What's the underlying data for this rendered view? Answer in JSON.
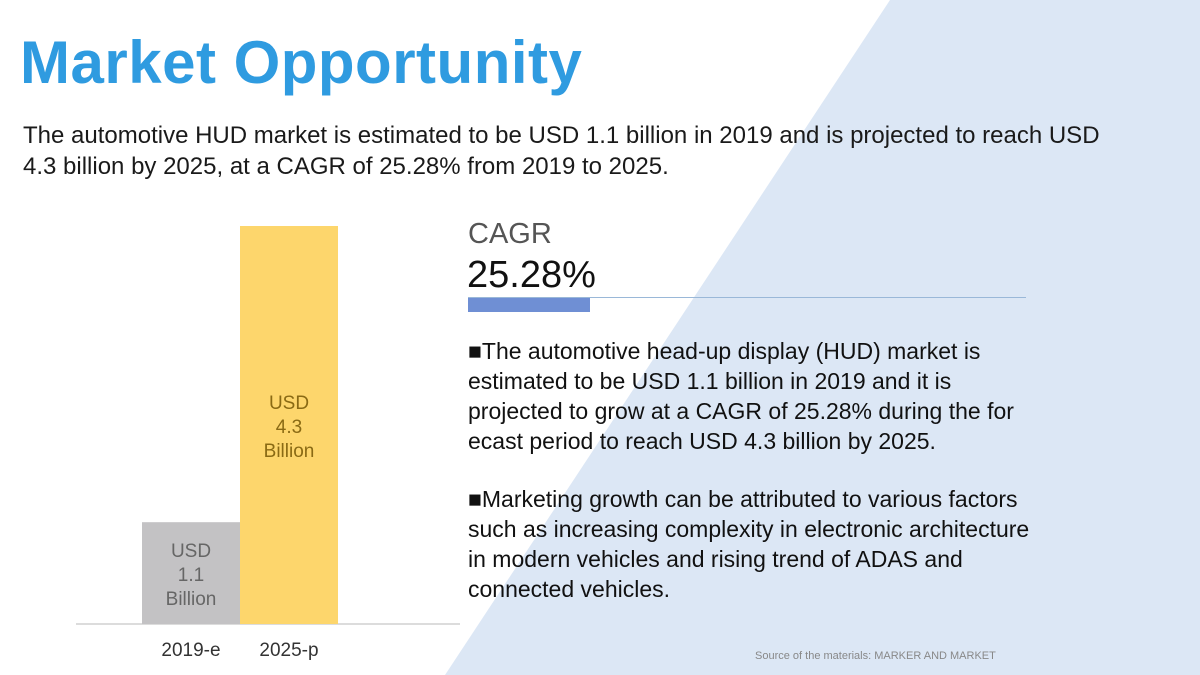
{
  "title": "Market Opportunity",
  "intro": "The automotive HUD market is estimated to be USD 1.1 billion in 2019 and is projected to reach USD 4.3 billion by 2025, at a CAGR of 25.28% from 2019 to 2025.",
  "cagr": {
    "label": "CAGR",
    "value": "25.28%"
  },
  "paragraphs": [
    "■The automotive head-up display (HUD) market is estimated to be USD 1.1 billion in 2019 and it is projected to grow at a CAGR of 25.28% during the for ecast period to reach USD 4.3 billion by 2025.",
    "■Marketing growth can be attributed to various factors such as increasing complexity in electronic architecture in modern vehicles and rising trend of ADAS and connected vehicles."
  ],
  "source": "Source of the materials: MARKER AND MARKET",
  "colors": {
    "title": "#2f9be0",
    "bar_2019": "#c3c2c4",
    "bar_2025": "#fdd66c",
    "bg_triangle": "#dce7f5",
    "cagr_bar": "#6f8fd4"
  },
  "chart_data": {
    "type": "bar",
    "categories": [
      "2019-e",
      "2025-p"
    ],
    "values": [
      1.1,
      4.3
    ],
    "data_labels": [
      [
        "USD",
        "1.1",
        "Billion"
      ],
      [
        "USD",
        "4.3",
        "Billion"
      ]
    ],
    "ylim": [
      0,
      4.3
    ],
    "grid": false,
    "legend": "none"
  }
}
